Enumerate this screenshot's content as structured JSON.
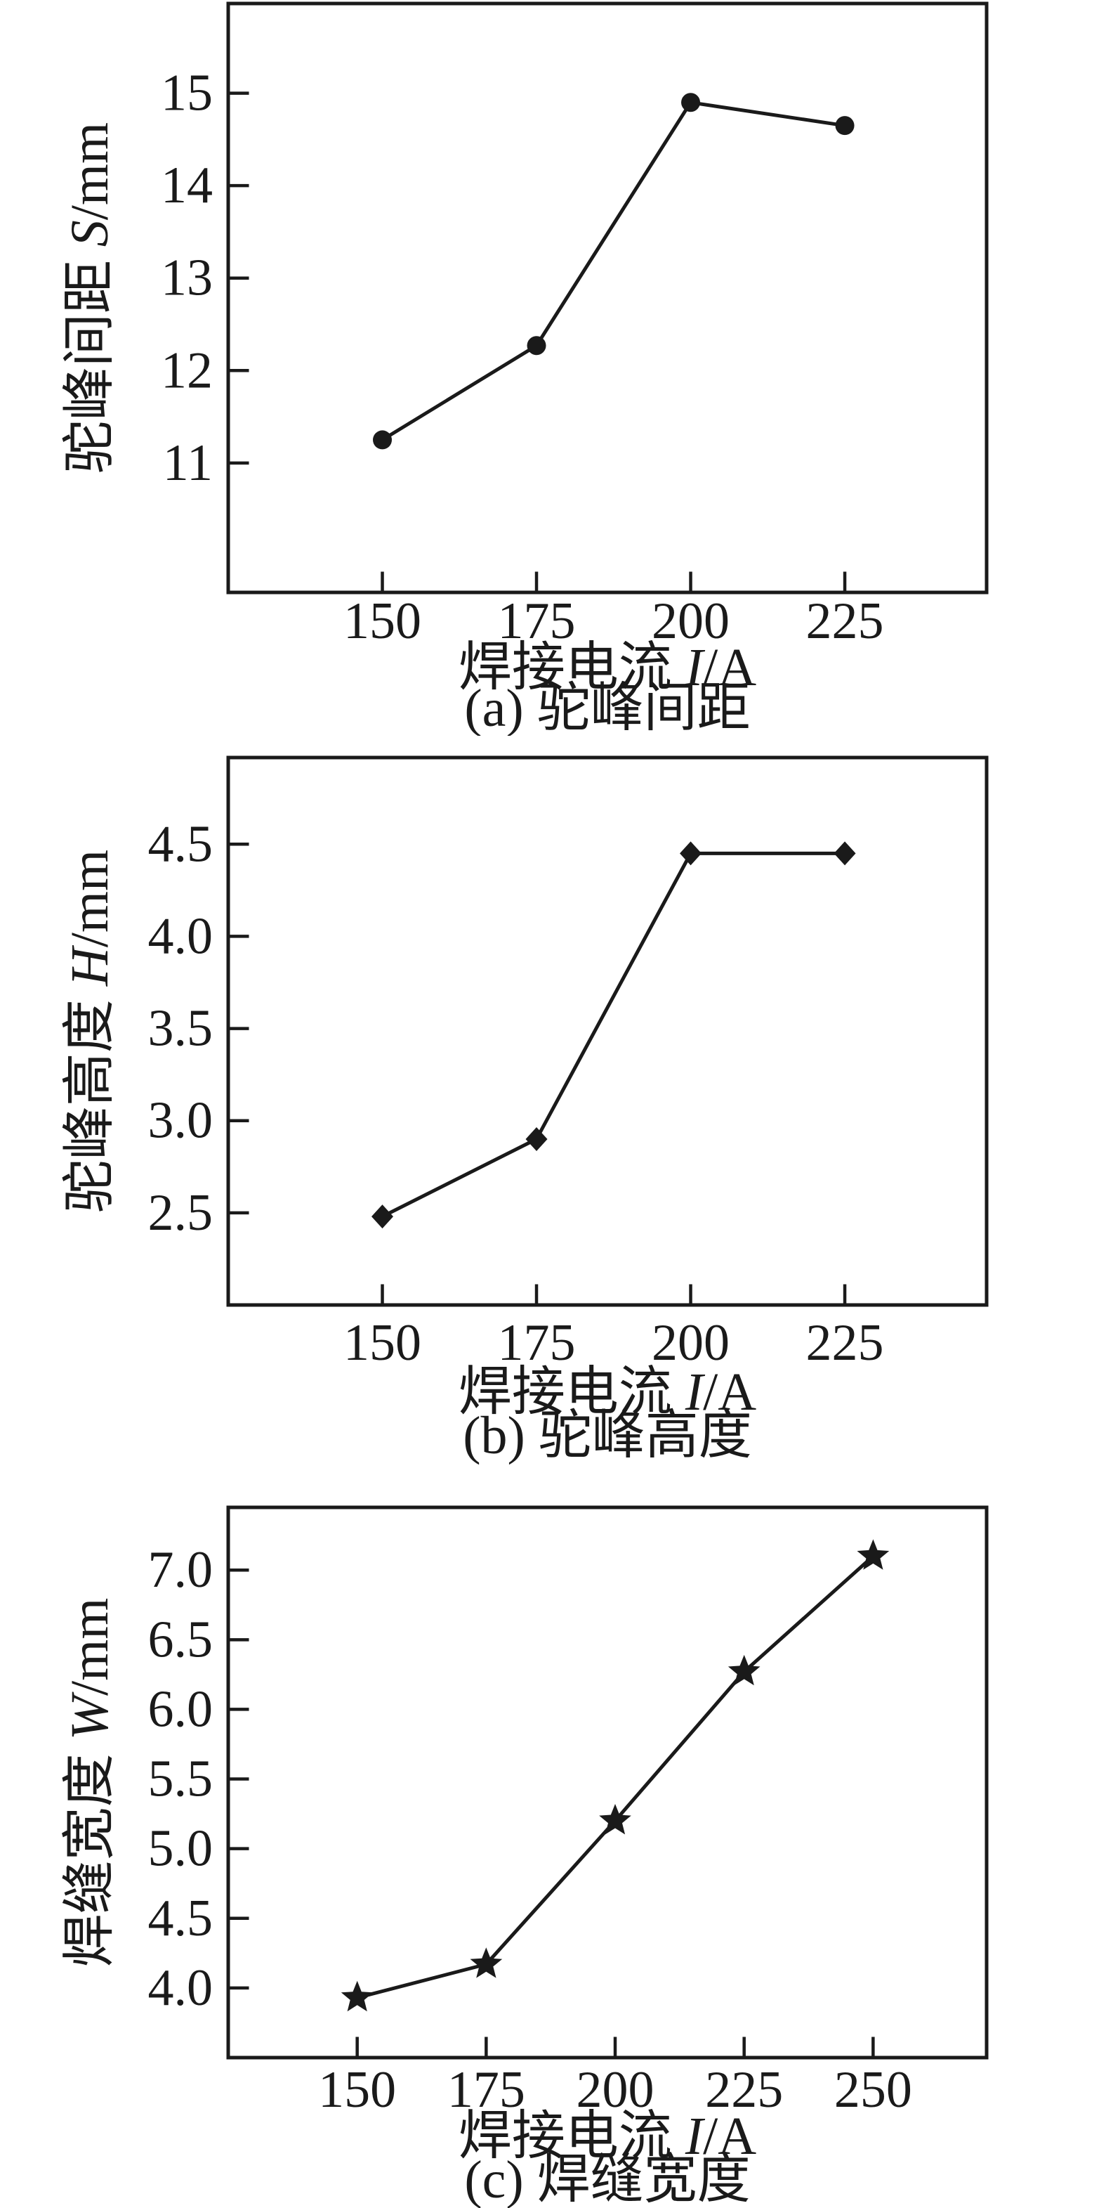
{
  "figure": {
    "background": "#ffffff",
    "ink_color": "#1a1a1a"
  },
  "chart_data": [
    {
      "id": "a",
      "type": "line",
      "marker": "filled-circle",
      "x": [
        150,
        175,
        200,
        225
      ],
      "y": [
        11.25,
        12.27,
        14.9,
        14.65
      ],
      "xtick_labels": [
        "150",
        "175",
        "200",
        "225"
      ],
      "ytick_labels": [
        "11",
        "12",
        "13",
        "14",
        "15"
      ],
      "xlim": [
        125,
        248
      ],
      "ylim": [
        9.6,
        15.97
      ],
      "grid": false,
      "legend": "none",
      "xlabel": "焊接电流 I/A",
      "xlabel_parts": [
        "焊接电流 ",
        "I",
        "/A"
      ],
      "ylabel": "驼峰间距 S/mm",
      "ylabel_parts": [
        "驼峰间距 ",
        "S",
        "/mm"
      ],
      "caption": "(a) 驼峰间距",
      "line_color": "#1a1a1a"
    },
    {
      "id": "b",
      "type": "line",
      "marker": "filled-diamond",
      "x": [
        150,
        175,
        200,
        225
      ],
      "y": [
        2.48,
        2.9,
        4.45,
        4.45
      ],
      "xtick_labels": [
        "150",
        "175",
        "200",
        "225"
      ],
      "ytick_labels": [
        "2.5",
        "3.0",
        "3.5",
        "4.0",
        "4.5"
      ],
      "xlim": [
        125,
        248
      ],
      "ylim": [
        2.0,
        4.97
      ],
      "grid": false,
      "legend": "none",
      "xlabel": "焊接电流 I/A",
      "xlabel_parts": [
        "焊接电流 ",
        "I",
        "/A"
      ],
      "ylabel": "驼峰高度 H/mm",
      "ylabel_parts": [
        "驼峰高度 ",
        "H",
        "/mm"
      ],
      "caption": "(b) 驼峰高度",
      "line_color": "#1a1a1a"
    },
    {
      "id": "c",
      "type": "line",
      "marker": "filled-star",
      "x": [
        150,
        175,
        200,
        225,
        250
      ],
      "y": [
        3.93,
        4.17,
        5.2,
        6.27,
        7.1
      ],
      "xtick_labels": [
        "150",
        "175",
        "200",
        "225",
        "250"
      ],
      "ytick_labels": [
        "4.0",
        "4.5",
        "5.0",
        "5.5",
        "6.0",
        "6.5",
        "7.0"
      ],
      "xlim": [
        125,
        272
      ],
      "ylim": [
        3.5,
        7.45
      ],
      "grid": false,
      "legend": "none",
      "xlabel": "焊接电流 I/A",
      "xlabel_parts": [
        "焊接电流 ",
        "I",
        "/A"
      ],
      "ylabel": "焊缝宽度 W/mm",
      "ylabel_parts": [
        "焊缝宽度 ",
        "W",
        "/mm"
      ],
      "caption": "(c) 焊缝宽度",
      "line_color": "#1a1a1a"
    }
  ]
}
